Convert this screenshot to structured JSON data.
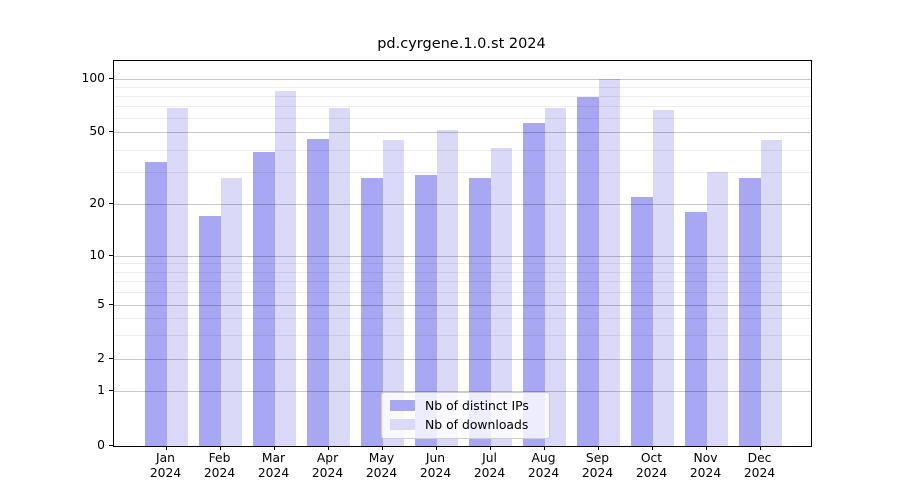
{
  "title": "pd.cyrgene.1.0.st 2024",
  "chart_data": {
    "type": "bar",
    "title": "pd.cyrgene.1.0.st 2024",
    "categories": [
      "Jan",
      "Feb",
      "Mar",
      "Apr",
      "May",
      "Jun",
      "Jul",
      "Aug",
      "Sep",
      "Oct",
      "Nov",
      "Dec"
    ],
    "category_year": "2024",
    "series": [
      {
        "name": "Nb of distinct IPs",
        "color": "#a7a7f3",
        "values": [
          34,
          17,
          39,
          46,
          28,
          29,
          28,
          56,
          79,
          22,
          18,
          28
        ]
      },
      {
        "name": "Nb of downloads",
        "color": "#dadaf8",
        "values": [
          68,
          28,
          85,
          68,
          45,
          51,
          41,
          68,
          100,
          67,
          30,
          45
        ]
      }
    ],
    "xlabel": "",
    "ylabel": "",
    "yscale": "log-with-zero",
    "ylim": [
      0,
      110
    ],
    "y_major_ticks": [
      100,
      50,
      20,
      10,
      5,
      2,
      1,
      0
    ],
    "y_minor_gridline_values": [
      3,
      4,
      6,
      7,
      8,
      9,
      30,
      40,
      60,
      70,
      80,
      90
    ],
    "grid": "on",
    "legend_position": "lower center"
  }
}
